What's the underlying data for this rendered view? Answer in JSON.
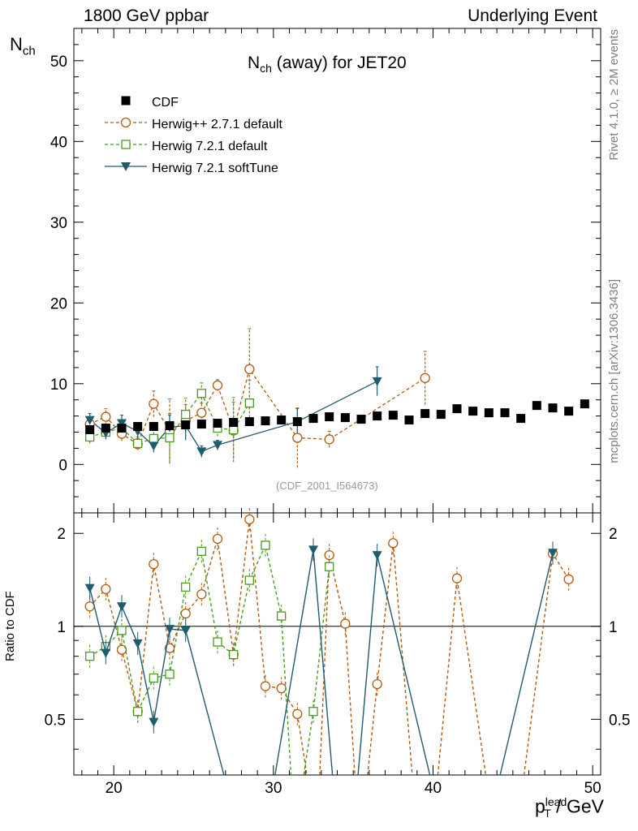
{
  "header": {
    "left": "1800 GeV ppbar",
    "right": "Underlying Event"
  },
  "side": {
    "rivet": "Rivet 4.1.0, ≥ 2M events",
    "mcplots": "mcplots.cern.ch [arXiv:1306.3436]"
  },
  "colors": {
    "cdf": "#000000",
    "herwigpp": "#b55a0e",
    "herwig721": "#4a9c1e",
    "softtune": "#1f5c6e",
    "watermark": "#9a9a9a"
  },
  "chart_data": {
    "type": "scatter",
    "title_main": "N",
    "title_sub": "ch",
    "title_rest": " (away) for JET20",
    "ylabel_main": "N",
    "ylabel_sub": "ch",
    "xlabel_main": "p",
    "xlabel_sup": "lead",
    "xlabel_sub": "T",
    "xlabel_rest": " / GeV",
    "ratio_ylabel": "Ratio to CDF",
    "watermark": "(CDF_2001_I564673)",
    "xlim": [
      17.5,
      50.5
    ],
    "ylim": [
      -6,
      54
    ],
    "ratio_ylim": [
      0.33,
      2.33
    ],
    "x_ticks": [
      20,
      30,
      40,
      50
    ],
    "y_ticks": [
      0,
      10,
      20,
      30,
      40,
      50
    ],
    "ratio_ticks": [
      0.5,
      1,
      2
    ],
    "legend": [
      "CDF",
      "Herwig++ 2.7.1 default",
      "Herwig 7.2.1 default",
      "Herwig 7.2.1 softTune"
    ],
    "series": [
      {
        "name": "CDF",
        "style": "data",
        "x": [
          18.5,
          19.5,
          20.5,
          21.5,
          22.5,
          23.5,
          24.5,
          25.5,
          26.5,
          27.5,
          28.5,
          29.5,
          30.5,
          31.5,
          32.5,
          33.5,
          34.5,
          35.5,
          36.5,
          37.5,
          38.5,
          39.5,
          40.5,
          41.5,
          42.5,
          43.5,
          44.5,
          45.5,
          46.5,
          47.5,
          48.5,
          49.5
        ],
        "y": [
          4.3,
          4.5,
          4.5,
          4.7,
          4.7,
          4.8,
          4.9,
          5.0,
          5.1,
          5.2,
          5.3,
          5.4,
          5.5,
          5.3,
          5.7,
          5.9,
          5.8,
          5.6,
          6.0,
          6.1,
          5.5,
          6.3,
          6.2,
          6.9,
          6.6,
          6.4,
          6.4,
          5.7,
          7.3,
          7.0,
          6.6,
          7.5
        ]
      },
      {
        "name": "Herwig++ 2.7.1 default",
        "style": "circle",
        "x": [
          18.5,
          19.5,
          20.5,
          21.5,
          22.5,
          23.5,
          24.5,
          25.5,
          26.5,
          27.5,
          28.5,
          31.5,
          33.5,
          39.5
        ],
        "y": [
          5.0,
          5.9,
          3.8,
          2.5,
          7.5,
          4.1,
          5.4,
          6.4,
          9.8,
          4.2,
          11.8,
          3.3,
          3.1,
          10.7
        ],
        "err": [
          0.8,
          1.0,
          0.9,
          0.7,
          1.6,
          4.0,
          2.0,
          1.2,
          0.7,
          3.5,
          5.0,
          3.7,
          1.0,
          3.3
        ],
        "ratio": [
          1.16,
          1.32,
          0.84,
          0.53,
          1.59,
          0.85,
          1.1,
          1.27,
          1.92,
          0.81,
          2.22,
          0.63,
          0.52,
          1.7,
          1.43,
          0.64,
          0.65,
          1.02,
          1.86,
          1.72,
          1.42
        ],
        "ratio_x": [
          18.5,
          19.5,
          20.5,
          21.5,
          22.5,
          23.5,
          24.5,
          25.5,
          26.5,
          27.5,
          28.5,
          30.5,
          31.5,
          33.5,
          41.5,
          29.5,
          36.5,
          34.5,
          37.5,
          47.5,
          48.5
        ]
      },
      {
        "name": "Herwig 7.2.1 default",
        "style": "square",
        "x": [
          18.5,
          19.5,
          20.5,
          21.5,
          22.5,
          23.5,
          24.5,
          25.5,
          26.5,
          27.5,
          28.5
        ],
        "y": [
          3.4,
          4.0,
          4.5,
          2.6,
          3.2,
          3.3,
          6.2,
          8.8,
          4.5,
          4.3,
          7.6
        ],
        "err": [
          0.8,
          0.8,
          1.0,
          0.8,
          1.0,
          3.0,
          2.0,
          1.3,
          1.0,
          4.0,
          2.8
        ],
        "ratio": [
          0.8,
          0.86,
          0.97,
          0.53,
          0.68,
          0.7,
          1.34,
          1.75,
          0.89,
          0.81,
          1.41,
          1.83,
          1.08,
          0.53,
          1.56
        ],
        "ratio_x": [
          18.5,
          19.5,
          20.5,
          21.5,
          22.5,
          23.5,
          24.5,
          25.5,
          26.5,
          27.5,
          28.5,
          29.5,
          30.5,
          32.5,
          33.5
        ]
      },
      {
        "name": "Herwig 7.2.1 softTune",
        "style": "triangle",
        "x": [
          18.5,
          19.5,
          20.5,
          21.5,
          22.5,
          23.5,
          24.5,
          25.5,
          26.5,
          31.5,
          36.5
        ],
        "y": [
          5.5,
          3.9,
          5.1,
          4.1,
          2.3,
          4.6,
          4.8,
          1.6,
          2.4,
          5.3,
          10.3
        ],
        "err": [
          0.8,
          0.8,
          1.0,
          0.9,
          0.8,
          1.5,
          1.8,
          0.7,
          0.6,
          1.6,
          1.8
        ],
        "ratio": [
          1.33,
          0.82,
          1.16,
          0.88,
          0.49,
          0.98,
          0.97,
          1.77,
          1.7,
          1.73
        ],
        "ratio_x": [
          18.5,
          19.5,
          20.5,
          21.5,
          22.5,
          23.5,
          24.5,
          32.5,
          36.5,
          47.5
        ]
      }
    ]
  }
}
